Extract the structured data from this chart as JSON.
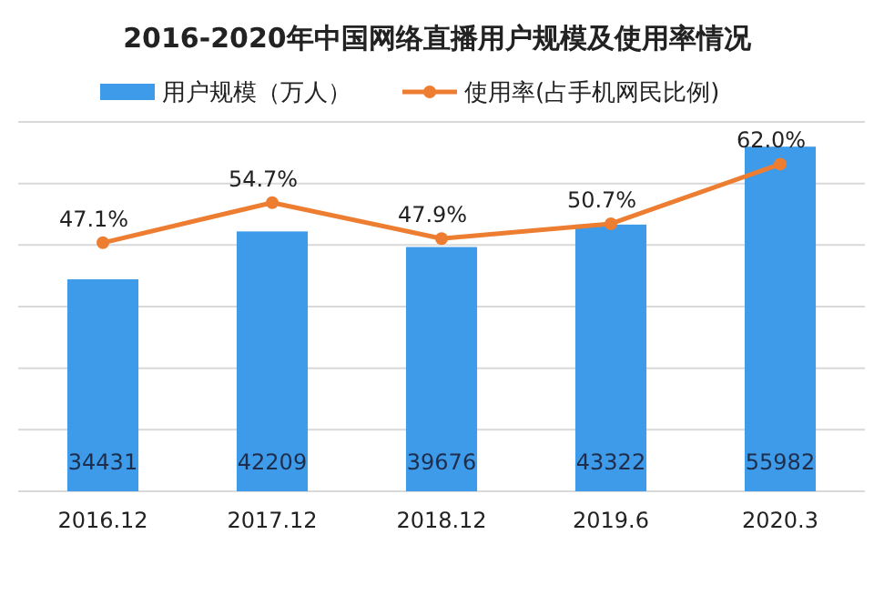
{
  "chart_data": {
    "type": "bar",
    "title": "2016-2020年中国网络直播用户规模及使用率情况",
    "categories": [
      "2016.12",
      "2017.12",
      "2018.12",
      "2019.6",
      "2020.3"
    ],
    "series": [
      {
        "name": "用户规模（万人）",
        "color": "#3d9be9",
        "values": [
          34431,
          42209,
          39676,
          43322,
          55982
        ]
      },
      {
        "name": "使用率(占手机网民比例)",
        "type": "line",
        "axis": "y2",
        "color": "#ed7d31",
        "values": [
          47.1,
          54.7,
          47.9,
          50.7,
          62.0
        ],
        "value_labels": [
          "47.1%",
          "54.7%",
          "47.9%",
          "50.7%",
          "62.0%"
        ]
      }
    ],
    "ylim": [
      0,
      60000
    ],
    "yticks": [
      {
        "value": 0,
        "label": null
      },
      {
        "value": 10000,
        "label": null
      },
      {
        "value": 20000,
        "label": null
      },
      {
        "value": 30000,
        "label": null
      },
      {
        "value": 40000,
        "label": null
      },
      {
        "value": 50000,
        "label": null
      },
      {
        "value": 60000,
        "label": null
      }
    ],
    "y2lim": [
      0,
      70
    ],
    "tick_labels": "x",
    "grid": "y",
    "legend": "top",
    "marker": "circle",
    "data_labels": true
  }
}
